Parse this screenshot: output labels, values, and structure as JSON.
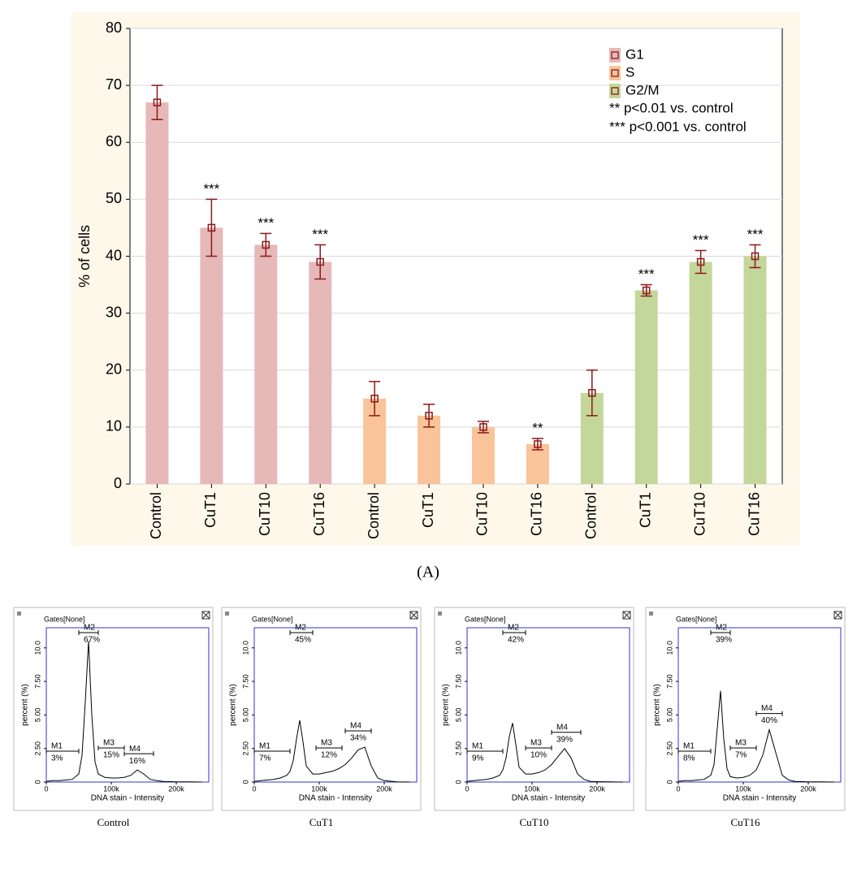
{
  "chart_data": [
    {
      "type": "bar",
      "ylabel": "% of cells",
      "panel_label": "(A)",
      "categories": [
        "Control",
        "CuT1",
        "CuT10",
        "CuT16",
        "Control",
        "CuT1",
        "CuT10",
        "CuT16",
        "Control",
        "CuT1",
        "CuT10",
        "CuT16"
      ],
      "series": [
        {
          "name": "G1",
          "color": "#e6b8b7",
          "values": [
            67,
            45,
            42,
            39,
            null,
            null,
            null,
            null,
            null,
            null,
            null,
            null
          ],
          "errors": [
            3,
            5,
            2,
            3,
            null,
            null,
            null,
            null,
            null,
            null,
            null,
            null
          ]
        },
        {
          "name": "S",
          "color": "#f9c499",
          "values": [
            null,
            null,
            null,
            null,
            15,
            12,
            10,
            7,
            null,
            null,
            null,
            null
          ],
          "errors": [
            null,
            null,
            null,
            null,
            3,
            2,
            1,
            1,
            null,
            null,
            null,
            null
          ]
        },
        {
          "name": "G2/M",
          "color": "#c4d79b",
          "values": [
            null,
            null,
            null,
            null,
            null,
            null,
            null,
            null,
            16,
            34,
            39,
            40
          ],
          "errors": [
            null,
            null,
            null,
            null,
            null,
            null,
            null,
            null,
            4,
            1,
            2,
            2
          ]
        }
      ],
      "annotations": [
        null,
        "***",
        "***",
        "***",
        null,
        null,
        null,
        "**",
        null,
        "***",
        "***",
        "***"
      ],
      "notes": [
        "** p<0.01 vs. control",
        "*** p<0.001 vs. control"
      ],
      "ylim": [
        0,
        80
      ],
      "yticks": [
        0,
        10,
        20,
        30,
        40,
        50,
        60,
        70,
        80
      ],
      "grid": true,
      "legend": "top-right"
    },
    {
      "type": "line",
      "header": "Gates[None]",
      "caption": "Control",
      "xlabel": "DNA stain - Intensity",
      "ylabel": "percent (%)",
      "color": "#000000",
      "x": [
        0,
        10000,
        20000,
        30000,
        40000,
        50000,
        55000,
        60000,
        65000,
        70000,
        75000,
        80000,
        90000,
        100000,
        110000,
        120000,
        130000,
        140000,
        150000,
        160000,
        170000,
        180000,
        190000,
        200000,
        220000,
        240000
      ],
      "values": [
        0.05,
        0.1,
        0.1,
        0.15,
        0.2,
        0.6,
        2.0,
        6.0,
        10.5,
        5.0,
        1.5,
        0.6,
        0.35,
        0.3,
        0.3,
        0.35,
        0.5,
        0.9,
        0.6,
        0.2,
        0.1,
        0.05,
        0.03,
        0.02,
        0.01,
        0
      ],
      "gates": {
        "names": [
          "M1",
          "M2",
          "M3",
          "M4"
        ],
        "values": [
          3,
          67,
          15,
          16
        ],
        "value_labels": [
          "3%",
          "67%",
          "15%",
          "16%"
        ],
        "ranges": [
          [
            0,
            50000
          ],
          [
            50000,
            80000
          ],
          [
            80000,
            120000
          ],
          [
            120000,
            165000
          ]
        ]
      },
      "xlim": [
        0,
        250000
      ],
      "ylim": [
        0,
        11.5
      ],
      "xticks": [
        0,
        {
          "value": 100000,
          "label": "100k"
        },
        {
          "value": 200000,
          "label": "200k"
        }
      ],
      "yticks": [
        0,
        {
          "value": 2.5,
          "label": "2.50"
        },
        {
          "value": 5,
          "label": "5.00"
        },
        {
          "value": 7.5,
          "label": "7.50"
        },
        {
          "value": 10,
          "label": "10.0"
        }
      ]
    },
    {
      "type": "line",
      "header": "Gates[None]",
      "caption": "CuT1",
      "xlabel": "DNA stain - Intensity",
      "ylabel": "percent (%)",
      "color": "#000000",
      "x": [
        0,
        10000,
        20000,
        30000,
        40000,
        50000,
        55000,
        60000,
        65000,
        70000,
        75000,
        80000,
        90000,
        100000,
        110000,
        120000,
        130000,
        140000,
        150000,
        160000,
        170000,
        180000,
        190000,
        200000,
        220000,
        240000
      ],
      "values": [
        0.05,
        0.1,
        0.15,
        0.2,
        0.3,
        0.5,
        0.8,
        1.6,
        3.2,
        4.6,
        3.0,
        1.2,
        0.6,
        0.6,
        0.7,
        0.8,
        1.0,
        1.3,
        1.8,
        2.4,
        2.6,
        1.2,
        0.3,
        0.1,
        0.02,
        0
      ],
      "gates": {
        "names": [
          "M1",
          "M2",
          "M3",
          "M4"
        ],
        "values": [
          7,
          45,
          12,
          34
        ],
        "value_labels": [
          "7%",
          "45%",
          "12%",
          "34%"
        ],
        "ranges": [
          [
            0,
            55000
          ],
          [
            55000,
            90000
          ],
          [
            95000,
            135000
          ],
          [
            140000,
            180000
          ]
        ]
      },
      "xlim": [
        0,
        250000
      ],
      "ylim": [
        0,
        11.5
      ],
      "xticks": [
        0,
        {
          "value": 100000,
          "label": "100k"
        },
        {
          "value": 200000,
          "label": "200k"
        }
      ],
      "yticks": [
        0,
        {
          "value": 2.5,
          "label": "2.50"
        },
        {
          "value": 5,
          "label": "5.00"
        },
        {
          "value": 7.5,
          "label": "7.50"
        },
        {
          "value": 10,
          "label": "10.0"
        }
      ]
    },
    {
      "type": "line",
      "header": "Gates[None]",
      "caption": "CuT10",
      "xlabel": "DNA stain - Intensity",
      "ylabel": "percent (%)",
      "color": "#000000",
      "x": [
        0,
        10000,
        20000,
        30000,
        40000,
        50000,
        55000,
        60000,
        65000,
        70000,
        75000,
        80000,
        90000,
        100000,
        110000,
        120000,
        130000,
        140000,
        150000,
        160000,
        170000,
        180000,
        190000,
        200000,
        220000,
        240000
      ],
      "values": [
        0.05,
        0.1,
        0.15,
        0.2,
        0.3,
        0.5,
        0.9,
        1.8,
        3.4,
        4.4,
        2.8,
        1.1,
        0.6,
        0.6,
        0.7,
        0.9,
        1.3,
        1.9,
        2.5,
        1.8,
        0.6,
        0.2,
        0.05,
        0.03,
        0.01,
        0
      ],
      "gates": {
        "names": [
          "M1",
          "M2",
          "M3",
          "M4"
        ],
        "values": [
          9,
          42,
          10,
          39
        ],
        "value_labels": [
          "9%",
          "42%",
          "10%",
          "39%"
        ],
        "ranges": [
          [
            0,
            55000
          ],
          [
            55000,
            90000
          ],
          [
            90000,
            130000
          ],
          [
            130000,
            175000
          ]
        ]
      },
      "xlim": [
        0,
        250000
      ],
      "ylim": [
        0,
        11.5
      ],
      "xticks": [
        0,
        {
          "value": 100000,
          "label": "100k"
        },
        {
          "value": 200000,
          "label": "200k"
        }
      ],
      "yticks": [
        0,
        {
          "value": 2.5,
          "label": "2.50"
        },
        {
          "value": 5,
          "label": "5.00"
        },
        {
          "value": 7.5,
          "label": "7.50"
        },
        {
          "value": 10,
          "label": "10.0"
        }
      ]
    },
    {
      "type": "line",
      "header": "Gates[None]",
      "caption": "CuT16",
      "xlabel": "DNA stain - Intensity",
      "ylabel": "percent (%)",
      "color": "#000000",
      "x": [
        0,
        10000,
        20000,
        30000,
        40000,
        50000,
        55000,
        60000,
        65000,
        70000,
        75000,
        80000,
        90000,
        100000,
        110000,
        120000,
        130000,
        140000,
        150000,
        160000,
        170000,
        180000,
        190000,
        200000,
        220000,
        240000
      ],
      "values": [
        0.05,
        0.1,
        0.1,
        0.15,
        0.2,
        0.5,
        1.3,
        4.0,
        6.8,
        3.2,
        1.0,
        0.4,
        0.3,
        0.35,
        0.5,
        0.9,
        2.0,
        3.9,
        2.2,
        0.5,
        0.15,
        0.05,
        0.03,
        0.02,
        0.01,
        0
      ],
      "gates": {
        "names": [
          "M1",
          "M2",
          "M3",
          "M4"
        ],
        "values": [
          8,
          39,
          7,
          40
        ],
        "value_labels": [
          "8%",
          "39%",
          "7%",
          "40%"
        ],
        "ranges": [
          [
            0,
            50000
          ],
          [
            50000,
            80000
          ],
          [
            80000,
            120000
          ],
          [
            120000,
            160000
          ]
        ]
      },
      "xlim": [
        0,
        250000
      ],
      "ylim": [
        0,
        11.5
      ],
      "xticks": [
        0,
        {
          "value": 100000,
          "label": "100k"
        },
        {
          "value": 200000,
          "label": "200k"
        }
      ],
      "yticks": [
        0,
        {
          "value": 2.5,
          "label": "2.50"
        },
        {
          "value": 5,
          "label": "5.00"
        },
        {
          "value": 7.5,
          "label": "7.50"
        },
        {
          "value": 10,
          "label": "10.0"
        }
      ]
    }
  ]
}
